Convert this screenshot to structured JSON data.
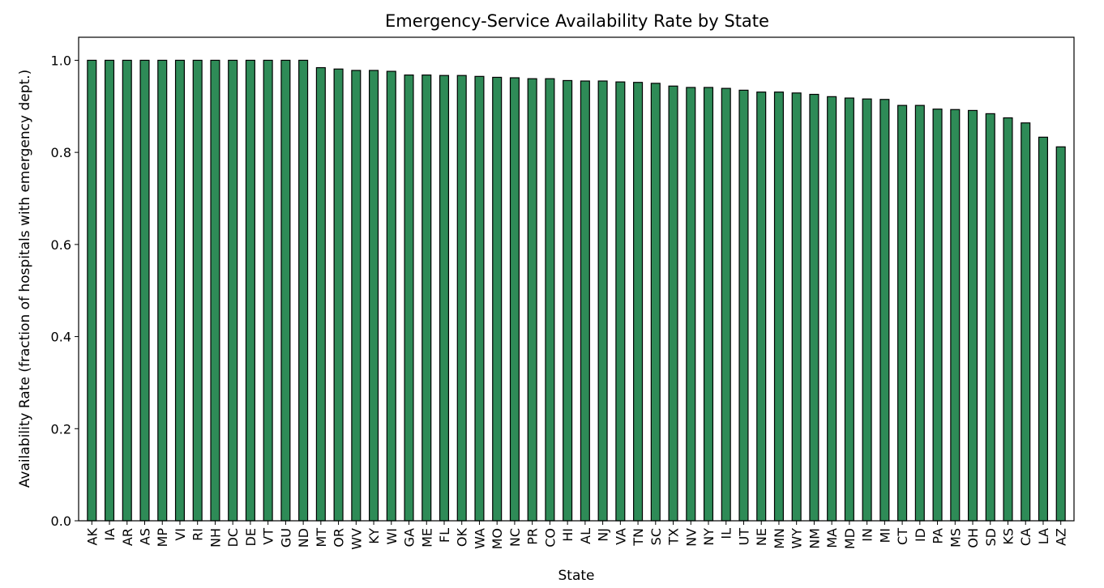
{
  "chart_data": {
    "type": "bar",
    "title": "Emergency-Service Availability Rate by State",
    "xlabel": "State",
    "ylabel": "Availability Rate  (fraction of hospitals with emergency dept.)",
    "ylim": [
      0.0,
      1.05
    ],
    "yticks": [
      "0.0",
      "0.2",
      "0.4",
      "0.6",
      "0.8",
      "1.0"
    ],
    "bar_color": "#2e8b57",
    "edge_color": "#000000",
    "grid": false,
    "legend": "none",
    "categories": [
      "AK",
      "IA",
      "AR",
      "AS",
      "MP",
      "VI",
      "RI",
      "NH",
      "DC",
      "DE",
      "VT",
      "GU",
      "ND",
      "MT",
      "OR",
      "WV",
      "KY",
      "WI",
      "GA",
      "ME",
      "FL",
      "OK",
      "WA",
      "MO",
      "NC",
      "PR",
      "CO",
      "HI",
      "AL",
      "NJ",
      "VA",
      "TN",
      "SC",
      "TX",
      "NV",
      "NY",
      "IL",
      "UT",
      "NE",
      "MN",
      "WY",
      "NM",
      "MA",
      "MD",
      "IN",
      "MI",
      "CT",
      "ID",
      "PA",
      "MS",
      "OH",
      "SD",
      "KS",
      "CA",
      "LA",
      "AZ"
    ],
    "values": [
      1.0,
      1.0,
      1.0,
      1.0,
      1.0,
      1.0,
      1.0,
      1.0,
      1.0,
      1.0,
      1.0,
      1.0,
      1.0,
      0.984,
      0.981,
      0.978,
      0.978,
      0.976,
      0.968,
      0.968,
      0.967,
      0.967,
      0.965,
      0.963,
      0.962,
      0.96,
      0.96,
      0.956,
      0.955,
      0.955,
      0.953,
      0.952,
      0.95,
      0.944,
      0.941,
      0.941,
      0.939,
      0.935,
      0.931,
      0.931,
      0.929,
      0.926,
      0.921,
      0.918,
      0.916,
      0.915,
      0.902,
      0.902,
      0.894,
      0.893,
      0.891,
      0.884,
      0.875,
      0.864,
      0.833,
      0.812
    ]
  }
}
